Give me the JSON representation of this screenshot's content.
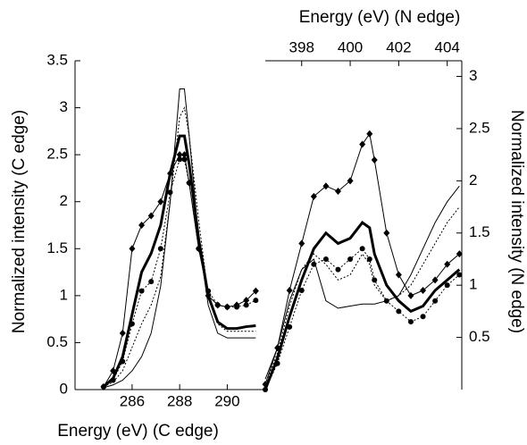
{
  "chart_data": [
    {
      "type": "line",
      "xlabel": "Energy (eV) (C edge)",
      "ylabel": "Normalized intensity (C edge)",
      "x_axis_side": "bottom",
      "y_axis_side": "left",
      "xlim": [
        283.6,
        291.6
      ],
      "xticks": [
        286,
        288,
        290
      ],
      "ylim": [
        0,
        3.5
      ],
      "yticks": [
        0,
        0.5,
        1,
        1.5,
        2,
        2.5,
        3,
        3.5
      ],
      "x": [
        284.8,
        285.2,
        285.6,
        286,
        286.4,
        286.8,
        287.2,
        287.6,
        288,
        288.2,
        288.4,
        288.8,
        289.2,
        289.6,
        290,
        290.4,
        290.8,
        291.2
      ],
      "series": [
        {
          "color": "#000000",
          "width": 1,
          "dash": "none",
          "marker": "none",
          "values": [
            0.02,
            0.05,
            0.1,
            0.2,
            0.35,
            0.6,
            1.1,
            2.0,
            3.2,
            3.2,
            2.7,
            1.6,
            0.9,
            0.6,
            0.55,
            0.55,
            0.55,
            0.55
          ]
        },
        {
          "color": "#000000",
          "width": 1,
          "dash": "2 2",
          "marker": "none",
          "values": [
            0.03,
            0.08,
            0.2,
            0.45,
            0.7,
            0.9,
            1.2,
            2.0,
            2.9,
            3.0,
            2.7,
            1.8,
            1.0,
            0.7,
            0.62,
            0.62,
            0.62,
            0.62
          ]
        },
        {
          "color": "#000000",
          "width": 3,
          "dash": "none",
          "marker": "none",
          "values": [
            0.03,
            0.12,
            0.35,
            0.8,
            1.25,
            1.45,
            1.75,
            2.3,
            2.7,
            2.7,
            2.4,
            1.6,
            1.0,
            0.72,
            0.65,
            0.65,
            0.67,
            0.68
          ]
        },
        {
          "color": "#000000",
          "width": 1,
          "dash": "2 2",
          "marker": "circle",
          "values": [
            0.03,
            0.1,
            0.3,
            0.7,
            1.05,
            1.15,
            1.5,
            2.1,
            2.45,
            2.45,
            2.2,
            1.5,
            1.05,
            0.9,
            0.88,
            0.88,
            0.9,
            0.95
          ]
        },
        {
          "color": "#000000",
          "width": 1,
          "dash": "none",
          "marker": "diamond",
          "values": [
            0.03,
            0.2,
            0.6,
            1.5,
            1.75,
            1.85,
            2.0,
            2.3,
            2.5,
            2.5,
            2.2,
            1.5,
            1.0,
            0.9,
            0.88,
            0.9,
            0.95,
            1.05
          ]
        }
      ]
    },
    {
      "type": "line",
      "xlabel": "Energy (eV) (N edge)",
      "ylabel": "Normalized intensity (N edge)",
      "x_axis_side": "top",
      "y_axis_side": "right",
      "xlim": [
        396.5,
        404.6
      ],
      "xticks": [
        398,
        400,
        402,
        404
      ],
      "ylim": [
        0,
        3.15
      ],
      "yticks": [
        0.5,
        1,
        1.5,
        2,
        2.5,
        3
      ],
      "x": [
        396.5,
        397,
        397.5,
        398,
        398.5,
        399,
        399.5,
        400,
        400.5,
        400.8,
        401,
        401.5,
        402,
        402.5,
        403,
        403.5,
        404,
        404.5
      ],
      "series": [
        {
          "color": "#000000",
          "width": 1,
          "dash": "none",
          "marker": "none",
          "values": [
            0.1,
            0.4,
            0.85,
            1.15,
            1.25,
            0.85,
            0.78,
            0.8,
            0.82,
            0.82,
            0.82,
            0.85,
            0.9,
            1.1,
            1.35,
            1.6,
            1.8,
            1.95
          ]
        },
        {
          "color": "#000000",
          "width": 1,
          "dash": "2 2",
          "marker": "none",
          "values": [
            0.05,
            0.35,
            0.8,
            1.15,
            1.3,
            1.2,
            1.05,
            1.1,
            1.3,
            1.2,
            1.0,
            0.85,
            0.9,
            1.0,
            1.2,
            1.4,
            1.6,
            1.75
          ]
        },
        {
          "color": "#000000",
          "width": 3,
          "dash": "none",
          "marker": "none",
          "values": [
            0.0,
            0.3,
            0.7,
            1.05,
            1.35,
            1.5,
            1.4,
            1.45,
            1.6,
            1.55,
            1.3,
            1.0,
            0.85,
            0.75,
            0.8,
            0.95,
            1.05,
            1.15
          ]
        },
        {
          "color": "#000000",
          "width": 1,
          "dash": "2 2",
          "marker": "circle",
          "values": [
            0.0,
            0.25,
            0.6,
            0.95,
            1.2,
            1.25,
            1.15,
            1.25,
            1.35,
            1.25,
            1.05,
            0.85,
            0.75,
            0.65,
            0.7,
            0.85,
            1.0,
            1.1
          ]
        },
        {
          "color": "#000000",
          "width": 1,
          "dash": "none",
          "marker": "diamond",
          "values": [
            0.05,
            0.4,
            0.95,
            1.4,
            1.85,
            1.95,
            1.9,
            2.0,
            2.35,
            2.45,
            2.2,
            1.5,
            1.1,
            0.9,
            0.95,
            1.05,
            1.2,
            1.3
          ]
        }
      ]
    }
  ]
}
